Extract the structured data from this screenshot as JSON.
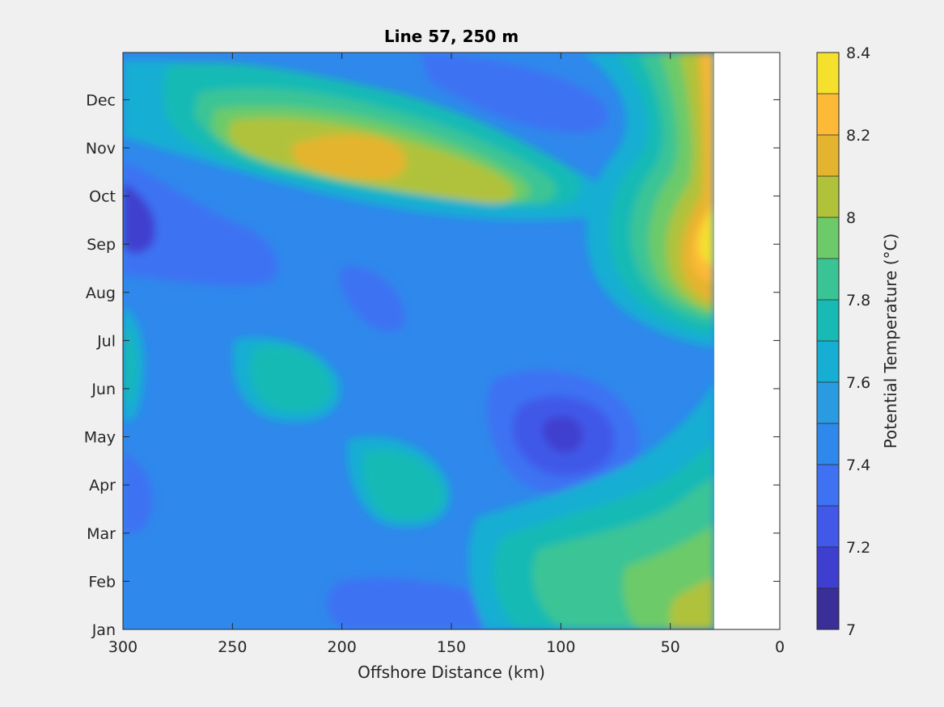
{
  "chart_data": {
    "type": "heatmap",
    "subtype": "filled-contour",
    "title": "Line 57, 250 m",
    "xlabel": "Offshore Distance (km)",
    "ylabel": "",
    "xlim": [
      300,
      0
    ],
    "x_direction": "reversed",
    "xticks": [
      300,
      250,
      200,
      150,
      100,
      50,
      0
    ],
    "y_categories": [
      "Jan",
      "Feb",
      "Mar",
      "Apr",
      "May",
      "Jun",
      "Jul",
      "Aug",
      "Sep",
      "Oct",
      "Nov",
      "Dec"
    ],
    "colorbar": {
      "label": "Potential Temperature (°C)",
      "clim": [
        7.0,
        8.4
      ],
      "step": 0.1,
      "ticks": [
        7,
        7.2,
        7.4,
        7.6,
        7.8,
        8,
        8.2,
        8.4
      ],
      "tick_labels": [
        "7",
        "7.2",
        "7.4",
        "7.6",
        "7.8",
        "8",
        "8.2",
        "8.4"
      ],
      "colors": [
        "#3a2e99",
        "#3f3fcf",
        "#4158e8",
        "#3e72f3",
        "#2f88ec",
        "#2a9be0",
        "#17aed3",
        "#18bab5",
        "#3ac495",
        "#6cca69",
        "#b0c23a",
        "#e5b42e",
        "#fdba37",
        "#f4e02d"
      ]
    },
    "data_coverage": {
      "x_min_km": 30,
      "x_max_km": 300
    },
    "grid": false
  }
}
